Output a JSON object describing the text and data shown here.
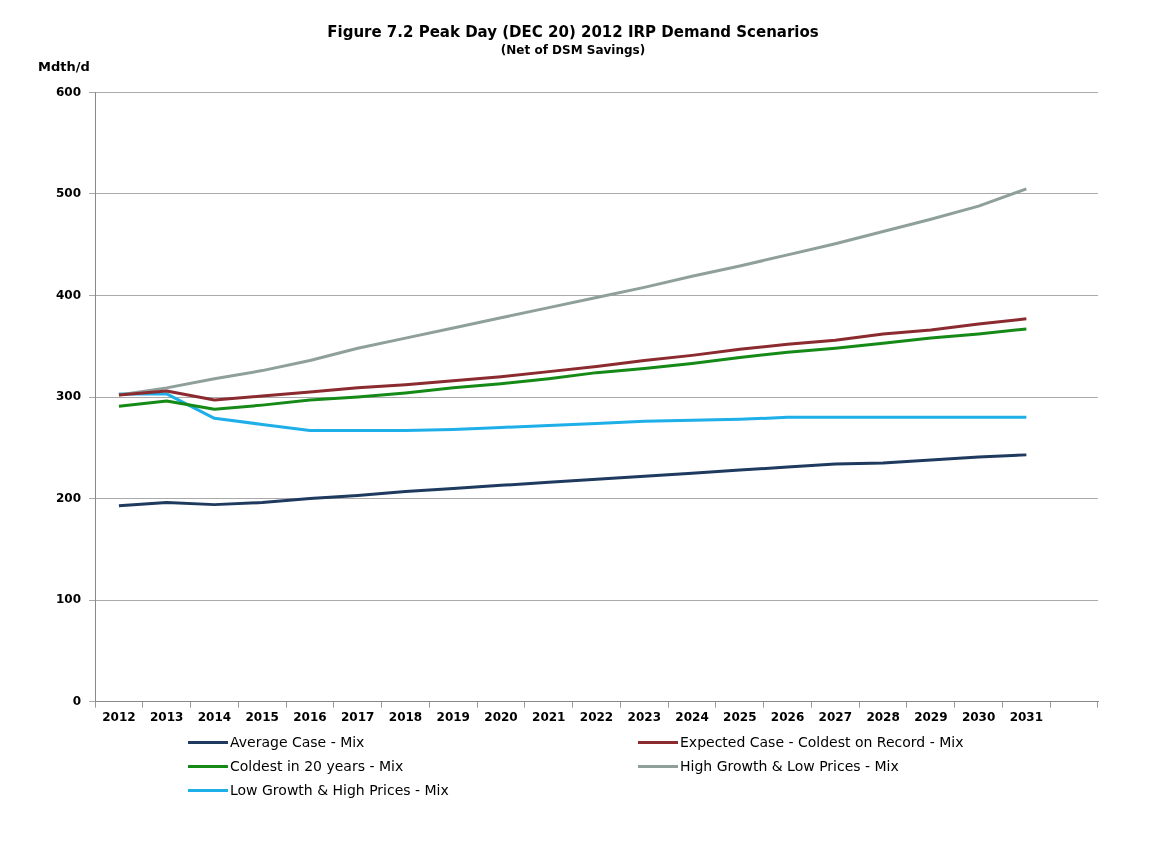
{
  "chart_data": {
    "type": "line",
    "title": "Figure 7.2 Peak Day (DEC 20) 2012 IRP Demand Scenarios",
    "subtitle": "(Net of DSM Savings)",
    "ylabel": "Mdth/d",
    "categories": [
      "2012",
      "2013",
      "2014",
      "2015",
      "2016",
      "2017",
      "2018",
      "2019",
      "2020",
      "2021",
      "2022",
      "2023",
      "2024",
      "2025",
      "2026",
      "2027",
      "2028",
      "2029",
      "2030",
      "2031",
      null
    ],
    "ylim": [
      0,
      600
    ],
    "yticks": [
      0,
      100,
      200,
      300,
      400,
      500,
      600
    ],
    "grid": "y",
    "legend": "bottom",
    "marker": "none",
    "series": [
      {
        "name": "Average Case - Mix",
        "color": "#1f3a5f",
        "values": [
          193,
          196,
          194,
          196,
          200,
          203,
          207,
          210,
          213,
          216,
          219,
          222,
          225,
          228,
          231,
          234,
          235,
          238,
          241,
          243,
          null
        ]
      },
      {
        "name": "Expected Case - Coldest on Record - Mix",
        "color": "#8b2b2f",
        "values": [
          302,
          306,
          297,
          301,
          305,
          309,
          312,
          316,
          320,
          325,
          330,
          336,
          341,
          347,
          352,
          356,
          362,
          366,
          372,
          377,
          null
        ]
      },
      {
        "name": "Coldest in 20 years - Mix",
        "color": "#158a16",
        "values": [
          291,
          296,
          288,
          292,
          297,
          300,
          304,
          309,
          313,
          318,
          324,
          328,
          333,
          339,
          344,
          348,
          353,
          358,
          362,
          367,
          null
        ]
      },
      {
        "name": "High Growth & Low Prices - Mix",
        "color": "#8fa09a",
        "values": [
          302,
          309,
          318,
          326,
          336,
          348,
          358,
          368,
          378,
          388,
          398,
          408,
          419,
          429,
          440,
          451,
          463,
          475,
          488,
          505,
          null
        ]
      },
      {
        "name": "Low Growth & High Prices - Mix",
        "color": "#1eaee8",
        "values": [
          303,
          303,
          279,
          273,
          267,
          267,
          267,
          268,
          270,
          272,
          274,
          276,
          277,
          278,
          280,
          280,
          280,
          280,
          280,
          280,
          null
        ]
      }
    ]
  }
}
